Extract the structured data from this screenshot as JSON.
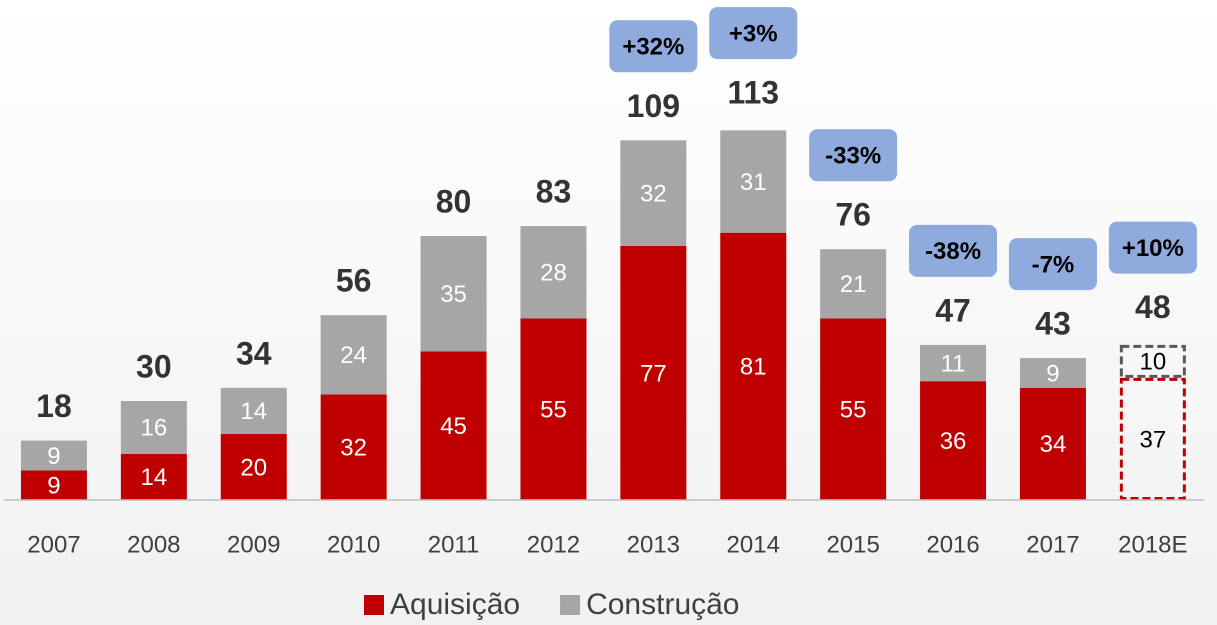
{
  "chart_data": {
    "type": "stacked_bar",
    "categories": [
      "2007",
      "2008",
      "2009",
      "2010",
      "2011",
      "2012",
      "2013",
      "2014",
      "2015",
      "2016",
      "2017",
      "2018E"
    ],
    "series": [
      {
        "name": "Aquisição",
        "color": "#c00000",
        "values": [
          9,
          14,
          20,
          32,
          45,
          55,
          77,
          81,
          55,
          36,
          34,
          37
        ]
      },
      {
        "name": "Construção",
        "color": "#a6a6a6",
        "values": [
          9,
          16,
          14,
          24,
          35,
          28,
          32,
          31,
          21,
          11,
          9,
          10
        ]
      }
    ],
    "totals": [
      18,
      30,
      34,
      56,
      80,
      83,
      109,
      113,
      76,
      47,
      43,
      48
    ],
    "changes": [
      null,
      null,
      null,
      null,
      null,
      null,
      32,
      3,
      -33,
      -38,
      -7,
      10
    ],
    "change_labels": [
      null,
      null,
      null,
      null,
      null,
      null,
      "+32%",
      "+3%",
      "-33%",
      "-38%",
      "-7%",
      "+10%"
    ],
    "change_color": "#8faadc",
    "estimated": "2018E",
    "ylim": [
      0,
      120
    ],
    "legend": "bottom"
  }
}
